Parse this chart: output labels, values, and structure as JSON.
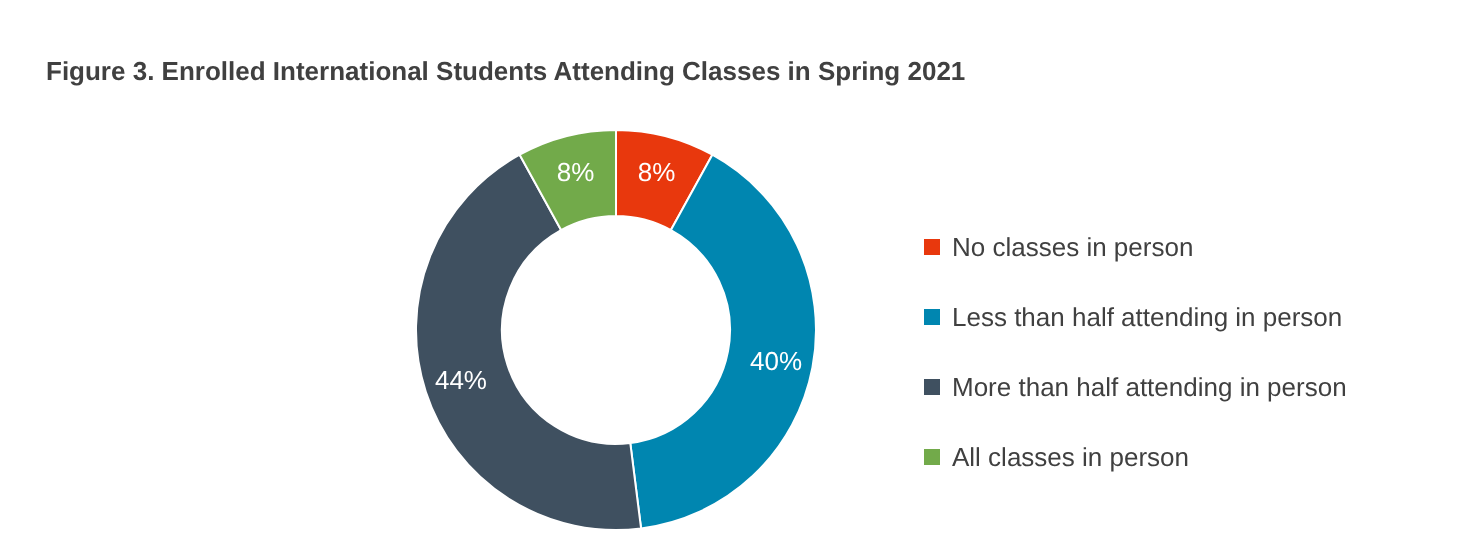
{
  "chart_data": {
    "type": "donut",
    "title": "Figure 3. Enrolled International Students Attending Classes in Spring 2021",
    "categories": [
      "No classes in person",
      "Less than half attending in person",
      "More than half attending in person",
      "All classes in person"
    ],
    "values": [
      8,
      40,
      44,
      8
    ],
    "value_labels": [
      "8%",
      "40%",
      "44%",
      "8%"
    ],
    "colors": [
      "#e8380d",
      "#0086b0",
      "#3f5060",
      "#72aa4a"
    ],
    "legend": "right"
  }
}
